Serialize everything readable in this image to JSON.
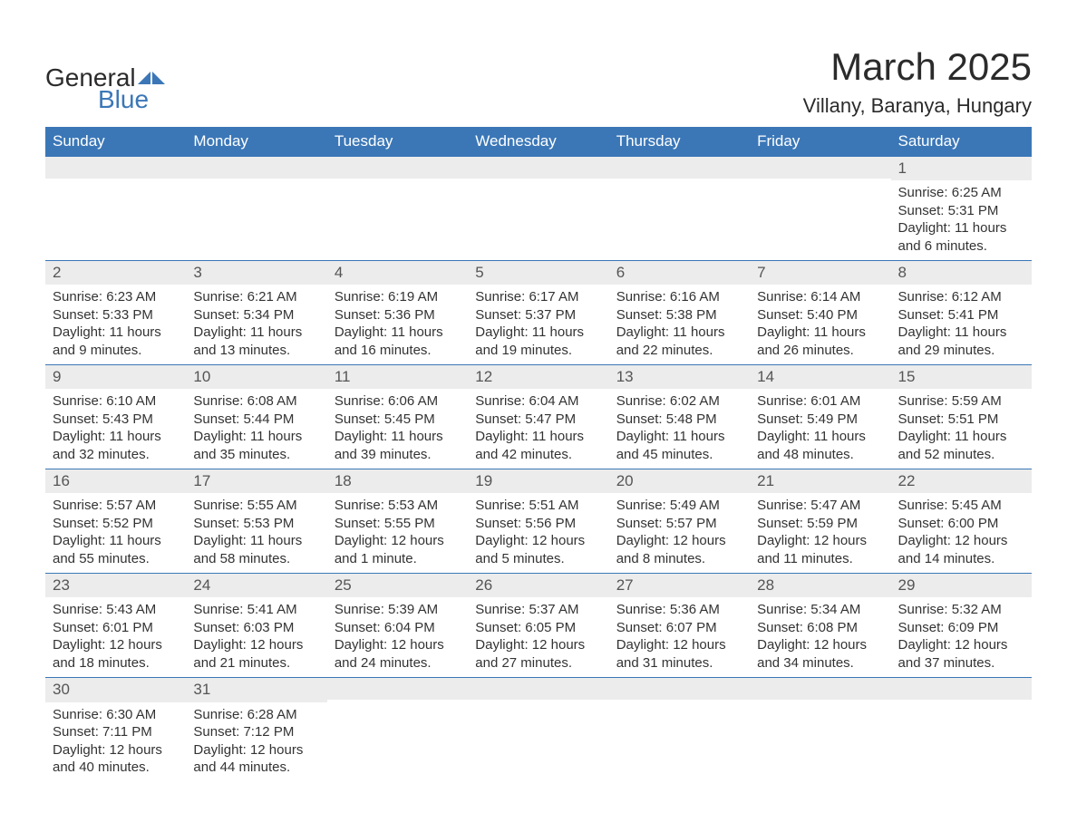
{
  "logo": {
    "word1": "General",
    "word2": "Blue",
    "brand_color": "#3b77b7"
  },
  "title": "March 2025",
  "location": "Villany, Baranya, Hungary",
  "colors": {
    "header_bg": "#3b77b7",
    "header_text": "#ffffff",
    "daynum_bg": "#ececec",
    "row_border": "#3b77b7",
    "body_text": "#333333",
    "background": "#ffffff"
  },
  "weekdays": [
    "Sunday",
    "Monday",
    "Tuesday",
    "Wednesday",
    "Thursday",
    "Friday",
    "Saturday"
  ],
  "weeks": [
    [
      null,
      null,
      null,
      null,
      null,
      null,
      {
        "d": "1",
        "sr": "6:25 AM",
        "ss": "5:31 PM",
        "dl": "11 hours and 6 minutes."
      }
    ],
    [
      {
        "d": "2",
        "sr": "6:23 AM",
        "ss": "5:33 PM",
        "dl": "11 hours and 9 minutes."
      },
      {
        "d": "3",
        "sr": "6:21 AM",
        "ss": "5:34 PM",
        "dl": "11 hours and 13 minutes."
      },
      {
        "d": "4",
        "sr": "6:19 AM",
        "ss": "5:36 PM",
        "dl": "11 hours and 16 minutes."
      },
      {
        "d": "5",
        "sr": "6:17 AM",
        "ss": "5:37 PM",
        "dl": "11 hours and 19 minutes."
      },
      {
        "d": "6",
        "sr": "6:16 AM",
        "ss": "5:38 PM",
        "dl": "11 hours and 22 minutes."
      },
      {
        "d": "7",
        "sr": "6:14 AM",
        "ss": "5:40 PM",
        "dl": "11 hours and 26 minutes."
      },
      {
        "d": "8",
        "sr": "6:12 AM",
        "ss": "5:41 PM",
        "dl": "11 hours and 29 minutes."
      }
    ],
    [
      {
        "d": "9",
        "sr": "6:10 AM",
        "ss": "5:43 PM",
        "dl": "11 hours and 32 minutes."
      },
      {
        "d": "10",
        "sr": "6:08 AM",
        "ss": "5:44 PM",
        "dl": "11 hours and 35 minutes."
      },
      {
        "d": "11",
        "sr": "6:06 AM",
        "ss": "5:45 PM",
        "dl": "11 hours and 39 minutes."
      },
      {
        "d": "12",
        "sr": "6:04 AM",
        "ss": "5:47 PM",
        "dl": "11 hours and 42 minutes."
      },
      {
        "d": "13",
        "sr": "6:02 AM",
        "ss": "5:48 PM",
        "dl": "11 hours and 45 minutes."
      },
      {
        "d": "14",
        "sr": "6:01 AM",
        "ss": "5:49 PM",
        "dl": "11 hours and 48 minutes."
      },
      {
        "d": "15",
        "sr": "5:59 AM",
        "ss": "5:51 PM",
        "dl": "11 hours and 52 minutes."
      }
    ],
    [
      {
        "d": "16",
        "sr": "5:57 AM",
        "ss": "5:52 PM",
        "dl": "11 hours and 55 minutes."
      },
      {
        "d": "17",
        "sr": "5:55 AM",
        "ss": "5:53 PM",
        "dl": "11 hours and 58 minutes."
      },
      {
        "d": "18",
        "sr": "5:53 AM",
        "ss": "5:55 PM",
        "dl": "12 hours and 1 minute."
      },
      {
        "d": "19",
        "sr": "5:51 AM",
        "ss": "5:56 PM",
        "dl": "12 hours and 5 minutes."
      },
      {
        "d": "20",
        "sr": "5:49 AM",
        "ss": "5:57 PM",
        "dl": "12 hours and 8 minutes."
      },
      {
        "d": "21",
        "sr": "5:47 AM",
        "ss": "5:59 PM",
        "dl": "12 hours and 11 minutes."
      },
      {
        "d": "22",
        "sr": "5:45 AM",
        "ss": "6:00 PM",
        "dl": "12 hours and 14 minutes."
      }
    ],
    [
      {
        "d": "23",
        "sr": "5:43 AM",
        "ss": "6:01 PM",
        "dl": "12 hours and 18 minutes."
      },
      {
        "d": "24",
        "sr": "5:41 AM",
        "ss": "6:03 PM",
        "dl": "12 hours and 21 minutes."
      },
      {
        "d": "25",
        "sr": "5:39 AM",
        "ss": "6:04 PM",
        "dl": "12 hours and 24 minutes."
      },
      {
        "d": "26",
        "sr": "5:37 AM",
        "ss": "6:05 PM",
        "dl": "12 hours and 27 minutes."
      },
      {
        "d": "27",
        "sr": "5:36 AM",
        "ss": "6:07 PM",
        "dl": "12 hours and 31 minutes."
      },
      {
        "d": "28",
        "sr": "5:34 AM",
        "ss": "6:08 PM",
        "dl": "12 hours and 34 minutes."
      },
      {
        "d": "29",
        "sr": "5:32 AM",
        "ss": "6:09 PM",
        "dl": "12 hours and 37 minutes."
      }
    ],
    [
      {
        "d": "30",
        "sr": "6:30 AM",
        "ss": "7:11 PM",
        "dl": "12 hours and 40 minutes."
      },
      {
        "d": "31",
        "sr": "6:28 AM",
        "ss": "7:12 PM",
        "dl": "12 hours and 44 minutes."
      },
      null,
      null,
      null,
      null,
      null
    ]
  ],
  "labels": {
    "sunrise": "Sunrise:",
    "sunset": "Sunset:",
    "daylight": "Daylight:"
  }
}
